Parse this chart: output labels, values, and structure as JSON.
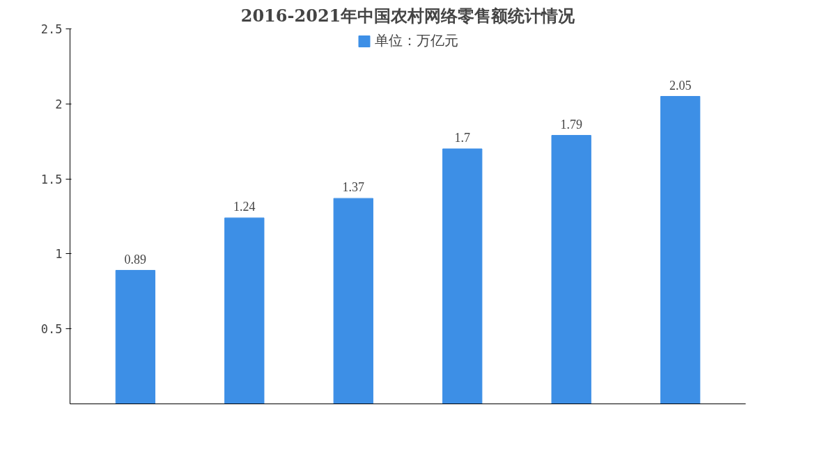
{
  "chart_data": {
    "type": "bar",
    "title": "2016-2021年中国农村网络零售额统计情况",
    "categories": [
      null,
      null,
      null,
      null,
      null,
      null
    ],
    "series": [
      {
        "name": "单位：万亿元",
        "color": "#3d8fe6",
        "values": [
          0.89,
          1.24,
          1.37,
          1.7,
          1.79,
          2.05
        ]
      }
    ],
    "ylim": [
      0,
      2.5
    ],
    "yticks": [
      0.5,
      1,
      1.5,
      2,
      2.5
    ],
    "data_labels": true,
    "legend": "top",
    "grid": false
  }
}
